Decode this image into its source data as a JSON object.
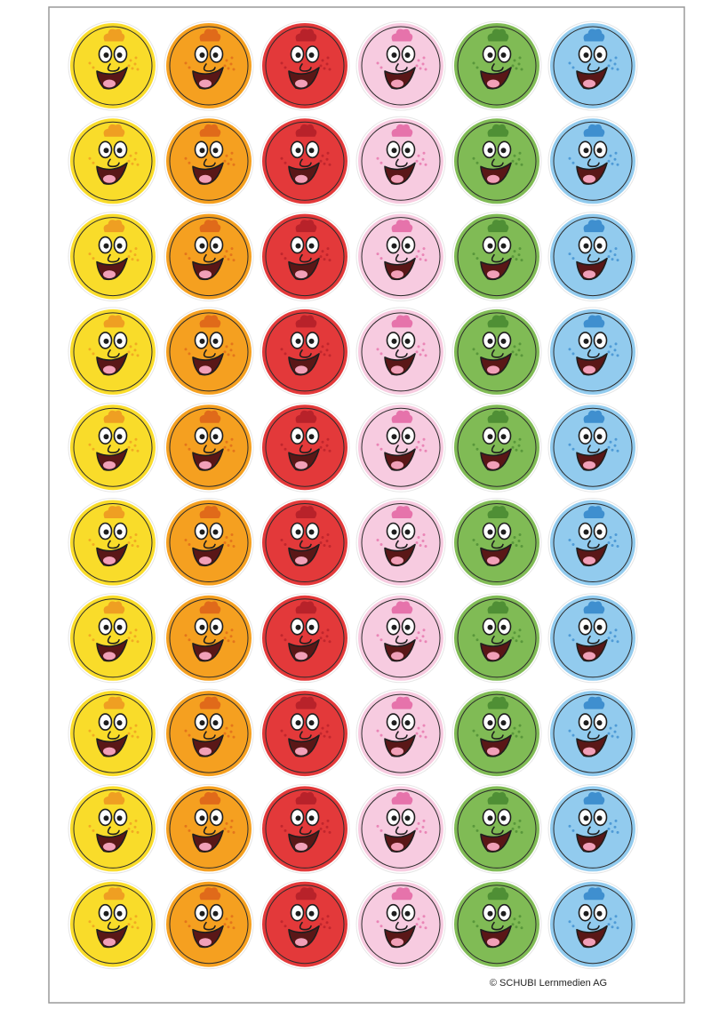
{
  "footer": {
    "credit": "© SCHUBI Lernmedien AG"
  }
}
